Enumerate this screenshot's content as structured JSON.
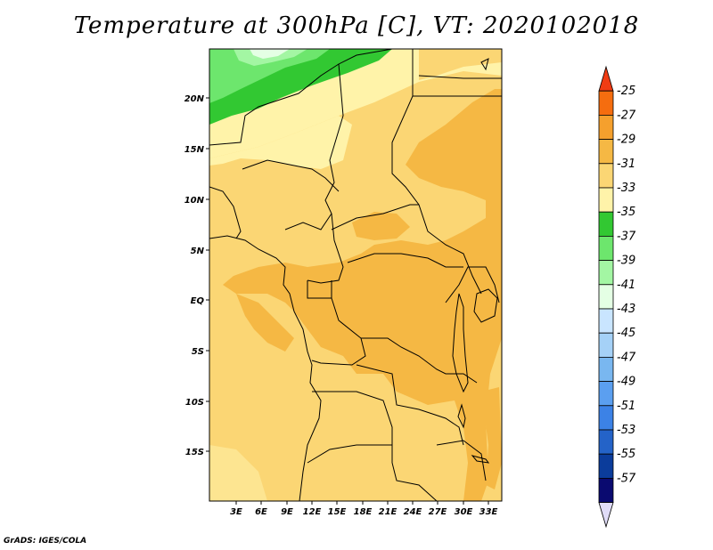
{
  "title": "Temperature at 300hPa [C], VT: 2020102018",
  "credit": "GrADS: IGES/COLA",
  "lat_labels": [
    "20N",
    "15N",
    "10N",
    "5N",
    "EQ",
    "5S",
    "10S",
    "15S"
  ],
  "lon_labels": [
    "3E",
    "6E",
    "9E",
    "12E",
    "15E",
    "18E",
    "21E",
    "24E",
    "27E",
    "30E",
    "33E"
  ],
  "legend": {
    "levels": [
      "-25",
      "-27",
      "-29",
      "-31",
      "-33",
      "-35",
      "-37",
      "-39",
      "-41",
      "-43",
      "-45",
      "-47",
      "-49",
      "-51",
      "-53",
      "-55",
      "-57"
    ],
    "colors": [
      "#f03c14",
      "#f56d0f",
      "#f5a02d",
      "#f5b844",
      "#fbd674",
      "#fff3a9",
      "#32c832",
      "#6de66d",
      "#a3f6a3",
      "#e4ffe4",
      "#c9e5ff",
      "#a5d1f7",
      "#79b7f0",
      "#5b9ff0",
      "#3c82e6",
      "#2463c8",
      "#0b3c9b",
      "#0a0a70",
      "#e0dcf8"
    ]
  }
}
